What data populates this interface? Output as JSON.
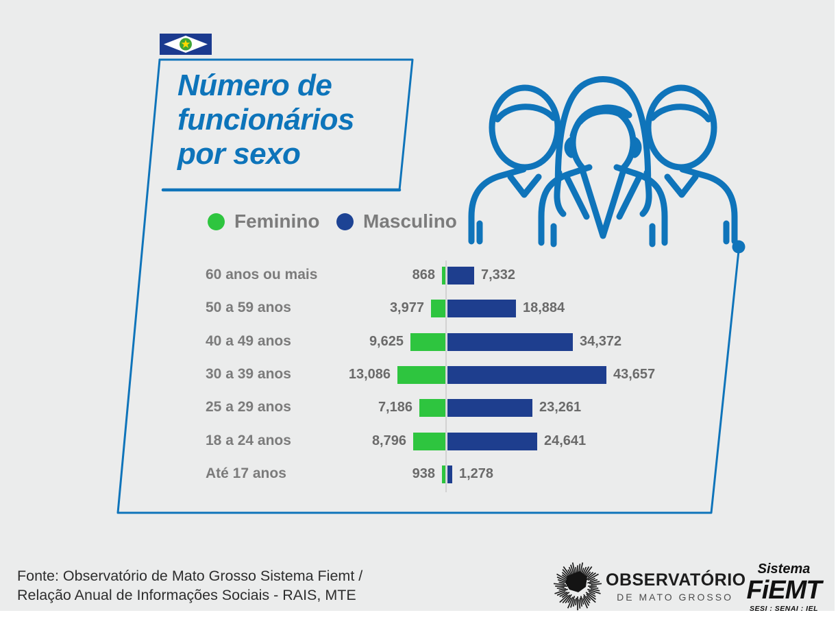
{
  "title": {
    "text": "Número de funcionários por sexo",
    "lines": [
      "Número de",
      "funcionários",
      "por sexo"
    ]
  },
  "legend": {
    "items": [
      {
        "label": "Feminino",
        "color": "#2ec53f"
      },
      {
        "label": "Masculino",
        "color": "#1d4394"
      }
    ]
  },
  "chart_data": {
    "type": "bar",
    "orientation": "diverging-horizontal",
    "title": "Número de funcionários por sexo",
    "categories": [
      "60 anos ou mais",
      "50 a 59 anos",
      "40 a 49 anos",
      "30 a 39 anos",
      "25 a 29 anos",
      "18 a 24 anos",
      "Até 17 anos"
    ],
    "series": [
      {
        "name": "Feminino",
        "color": "#2ec53f",
        "values": [
          868,
          3977,
          9625,
          13086,
          7186,
          8796,
          938
        ],
        "labels": [
          "868",
          "3,977",
          "9,625",
          "13,086",
          "7,186",
          "8,796",
          "938"
        ]
      },
      {
        "name": "Masculino",
        "color": "#1e3e8e",
        "values": [
          7332,
          18884,
          34372,
          43657,
          23261,
          24641,
          1278
        ],
        "labels": [
          "7,332",
          "18,884",
          "34,372",
          "43,657",
          "23,261",
          "24,641",
          "1,278"
        ]
      }
    ],
    "legend_position": "top",
    "grid": false
  },
  "footer": {
    "source_line1": "Fonte: Observatório de Mato Grosso Sistema Fiemt /",
    "source_line2": "Relação Anual de Informações Sociais - RAIS, MTE"
  },
  "logos": {
    "observatorio": {
      "line1": "OBSERVATÓRIO",
      "line2": "DE MATO GROSSO"
    },
    "fiemt": {
      "line1": "Sistema",
      "line2": "FiEMT",
      "line3": "SESI : SENAI : IEL"
    }
  },
  "colors": {
    "background": "#ebecec",
    "brand_blue": "#0f74ba",
    "bar_green": "#2ec53f",
    "bar_navy": "#1e3e8e",
    "axis_gray": "#d2d2d2",
    "label_gray": "#7b7b7b",
    "value_gray": "#6a6a6a",
    "footer_dark": "#2d2d2d",
    "logo_black": "#1b1b1b",
    "flag_navy": "#1b3a8f",
    "flag_green": "#3fa535",
    "flag_yellow": "#ffd800"
  }
}
